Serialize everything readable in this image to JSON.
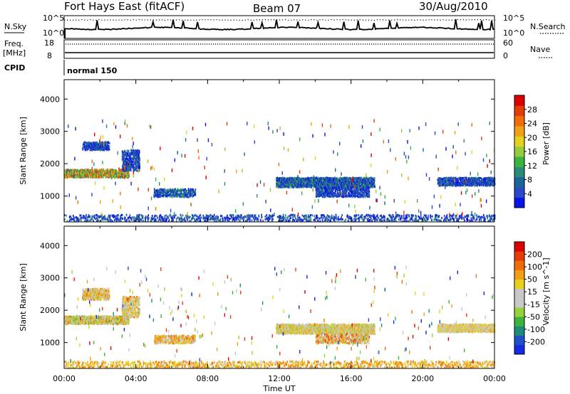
{
  "header": {
    "station": "Fort Hays East (fitACF)",
    "beam": "Beam 07",
    "date": "30/Aug/2010"
  },
  "strip": {
    "nsky_label": "N.Sky",
    "nsky_ticks": [
      "10^5",
      "10^0"
    ],
    "nsearch_label": "N.Search",
    "nsearch_ticks": [
      "10^5",
      "10^0"
    ],
    "freq_label": "Freq.",
    "freq_unit": "[MHz]",
    "freq_ticks": [
      "18",
      "8"
    ],
    "nave_label": "Nave",
    "nave_ticks": [
      "60",
      "0"
    ],
    "cpid_label": "CPID",
    "cpid_value": "normal 150"
  },
  "chart_data": [
    {
      "type": "heatmap",
      "name": "power",
      "ylabel": "Slant Range [km]",
      "ylim": [
        200,
        4600
      ],
      "yticks": [
        "1000",
        "2000",
        "3000",
        "4000"
      ],
      "xlim": [
        0,
        24
      ],
      "colorbar": {
        "label": "Power [dB]",
        "ticks": [
          "28",
          "24",
          "20",
          "16",
          "12",
          "8",
          "4"
        ],
        "colors": [
          "#0a14e6",
          "#2a48c8",
          "#1e6496",
          "#2a8c78",
          "#3cb43c",
          "#96cc3c",
          "#e6d21e",
          "#f0a014",
          "#f06e0a",
          "#e63c0a",
          "#dc0000"
        ]
      },
      "echo_regions": [
        {
          "t0": 0.0,
          "t1": 3.6,
          "r0": 1600,
          "r1": 1850,
          "density": 0.8,
          "level": [
            0.2,
            0.9
          ]
        },
        {
          "t0": 1.0,
          "t1": 2.5,
          "r0": 2450,
          "r1": 2700,
          "density": 0.6,
          "level": [
            0.0,
            0.3
          ]
        },
        {
          "t0": 3.2,
          "t1": 4.2,
          "r0": 1800,
          "r1": 2450,
          "density": 0.5,
          "level": [
            0.0,
            0.3
          ]
        },
        {
          "t0": 5.0,
          "t1": 7.3,
          "r0": 1000,
          "r1": 1250,
          "density": 0.5,
          "level": [
            0.0,
            0.4
          ]
        },
        {
          "t0": 11.8,
          "t1": 17.3,
          "r0": 1300,
          "r1": 1600,
          "density": 0.75,
          "level": [
            0.0,
            0.4
          ]
        },
        {
          "t0": 14.0,
          "t1": 17.0,
          "r0": 1000,
          "r1": 1300,
          "density": 0.5,
          "level": [
            0.0,
            0.3
          ]
        },
        {
          "t0": 20.8,
          "t1": 24.0,
          "r0": 1350,
          "r1": 1600,
          "density": 0.7,
          "level": [
            0.0,
            0.3
          ]
        },
        {
          "t0": 0.0,
          "t1": 24.0,
          "r0": 250,
          "r1": 450,
          "density": 0.25,
          "level": [
            0.0,
            0.3
          ]
        }
      ]
    },
    {
      "type": "heatmap",
      "name": "velocity",
      "ylabel": "Slant Range [km]",
      "ylim": [
        200,
        4600
      ],
      "yticks": [
        "1000",
        "2000",
        "3000",
        "4000"
      ],
      "xlabel": "Time UT",
      "xticks": [
        "00:00",
        "04:00",
        "08:00",
        "12:00",
        "16:00",
        "20:00",
        "00:00"
      ],
      "xlim": [
        0,
        24
      ],
      "colorbar": {
        "label": "Velocity [m s^-1]",
        "ticks": [
          "200",
          "100",
          "50",
          "15",
          "-15",
          "-50",
          "-100",
          "-200"
        ],
        "colors": [
          "#1428e6",
          "#1e50c8",
          "#1e8c78",
          "#3cb43c",
          "#96d23c",
          "#c8c8c8",
          "#c8c8c8",
          "#e6d21e",
          "#f0a014",
          "#f06e0a",
          "#e63c0a",
          "#dc0000"
        ]
      },
      "echo_regions": [
        {
          "t0": 0.0,
          "t1": 3.6,
          "r0": 1600,
          "r1": 1850,
          "density": 0.8,
          "level": [
            0.3,
            0.8
          ]
        },
        {
          "t0": 1.0,
          "t1": 2.5,
          "r0": 2350,
          "r1": 2700,
          "density": 0.6,
          "level": [
            0.4,
            0.8
          ]
        },
        {
          "t0": 3.2,
          "t1": 4.2,
          "r0": 1800,
          "r1": 2450,
          "density": 0.5,
          "level": [
            0.4,
            0.8
          ]
        },
        {
          "t0": 5.0,
          "t1": 7.3,
          "r0": 1000,
          "r1": 1250,
          "density": 0.5,
          "level": [
            0.5,
            0.8
          ]
        },
        {
          "t0": 11.8,
          "t1": 17.3,
          "r0": 1300,
          "r1": 1600,
          "density": 0.75,
          "level": [
            0.35,
            0.75
          ]
        },
        {
          "t0": 14.0,
          "t1": 17.0,
          "r0": 1000,
          "r1": 1300,
          "density": 0.5,
          "level": [
            0.4,
            0.9
          ]
        },
        {
          "t0": 20.8,
          "t1": 24.0,
          "r0": 1350,
          "r1": 1600,
          "density": 0.7,
          "level": [
            0.45,
            0.7
          ]
        },
        {
          "t0": 0.0,
          "t1": 24.0,
          "r0": 250,
          "r1": 450,
          "density": 0.25,
          "level": [
            0.55,
            0.8
          ]
        }
      ]
    }
  ]
}
